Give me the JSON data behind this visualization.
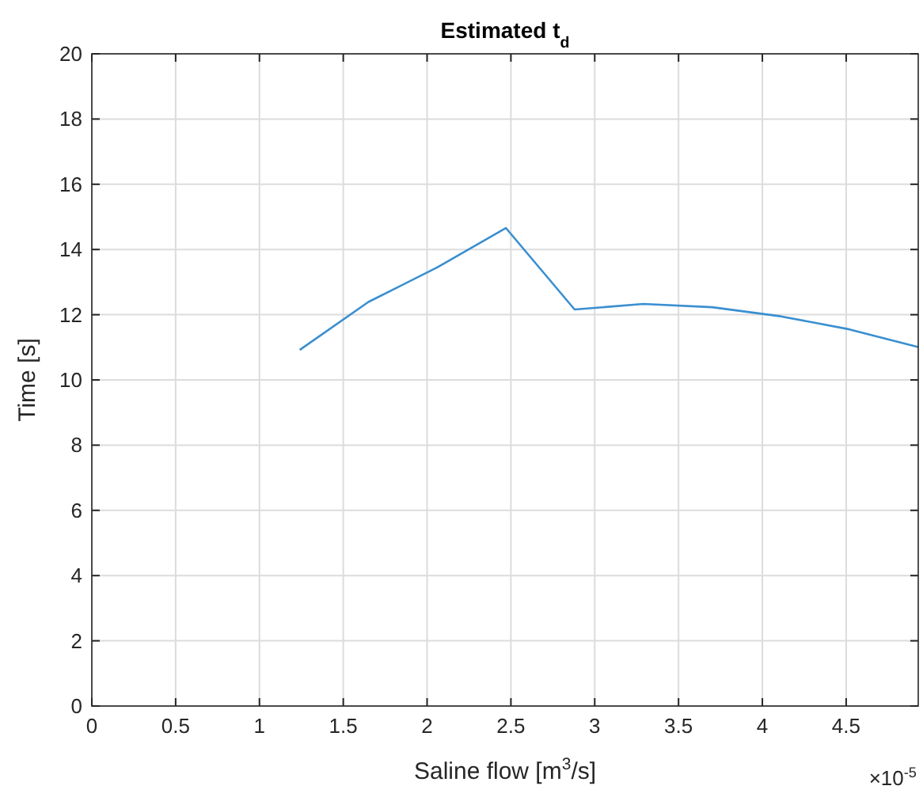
{
  "chart_data": {
    "type": "line",
    "title": "Estimated t$_{d}$",
    "xlabel": "Saline flow [m$^{3}$/s]",
    "ylabel": "Time [s]",
    "annotations": [
      "×10$^{-5}$"
    ],
    "x": [
      1.24,
      1.65,
      2.06,
      2.47,
      2.88,
      3.29,
      3.7,
      4.11,
      4.52,
      4.93
    ],
    "series": [
      {
        "color": "#3a8fd0",
        "values": [
          10.92,
          12.39,
          13.45,
          14.66,
          12.16,
          12.33,
          12.23,
          11.95,
          11.55,
          11.01
        ]
      }
    ],
    "xlim": [
      0,
      4.93
    ],
    "ylim": [
      0,
      20
    ],
    "xticks": [
      0,
      0.5,
      1,
      1.5,
      2,
      2.5,
      3,
      3.5,
      4,
      4.5
    ],
    "yticks": [
      0,
      2,
      4,
      6,
      8,
      10,
      12,
      14,
      16,
      18,
      20
    ],
    "grid": true,
    "marker": "none",
    "line_style": "solid"
  }
}
